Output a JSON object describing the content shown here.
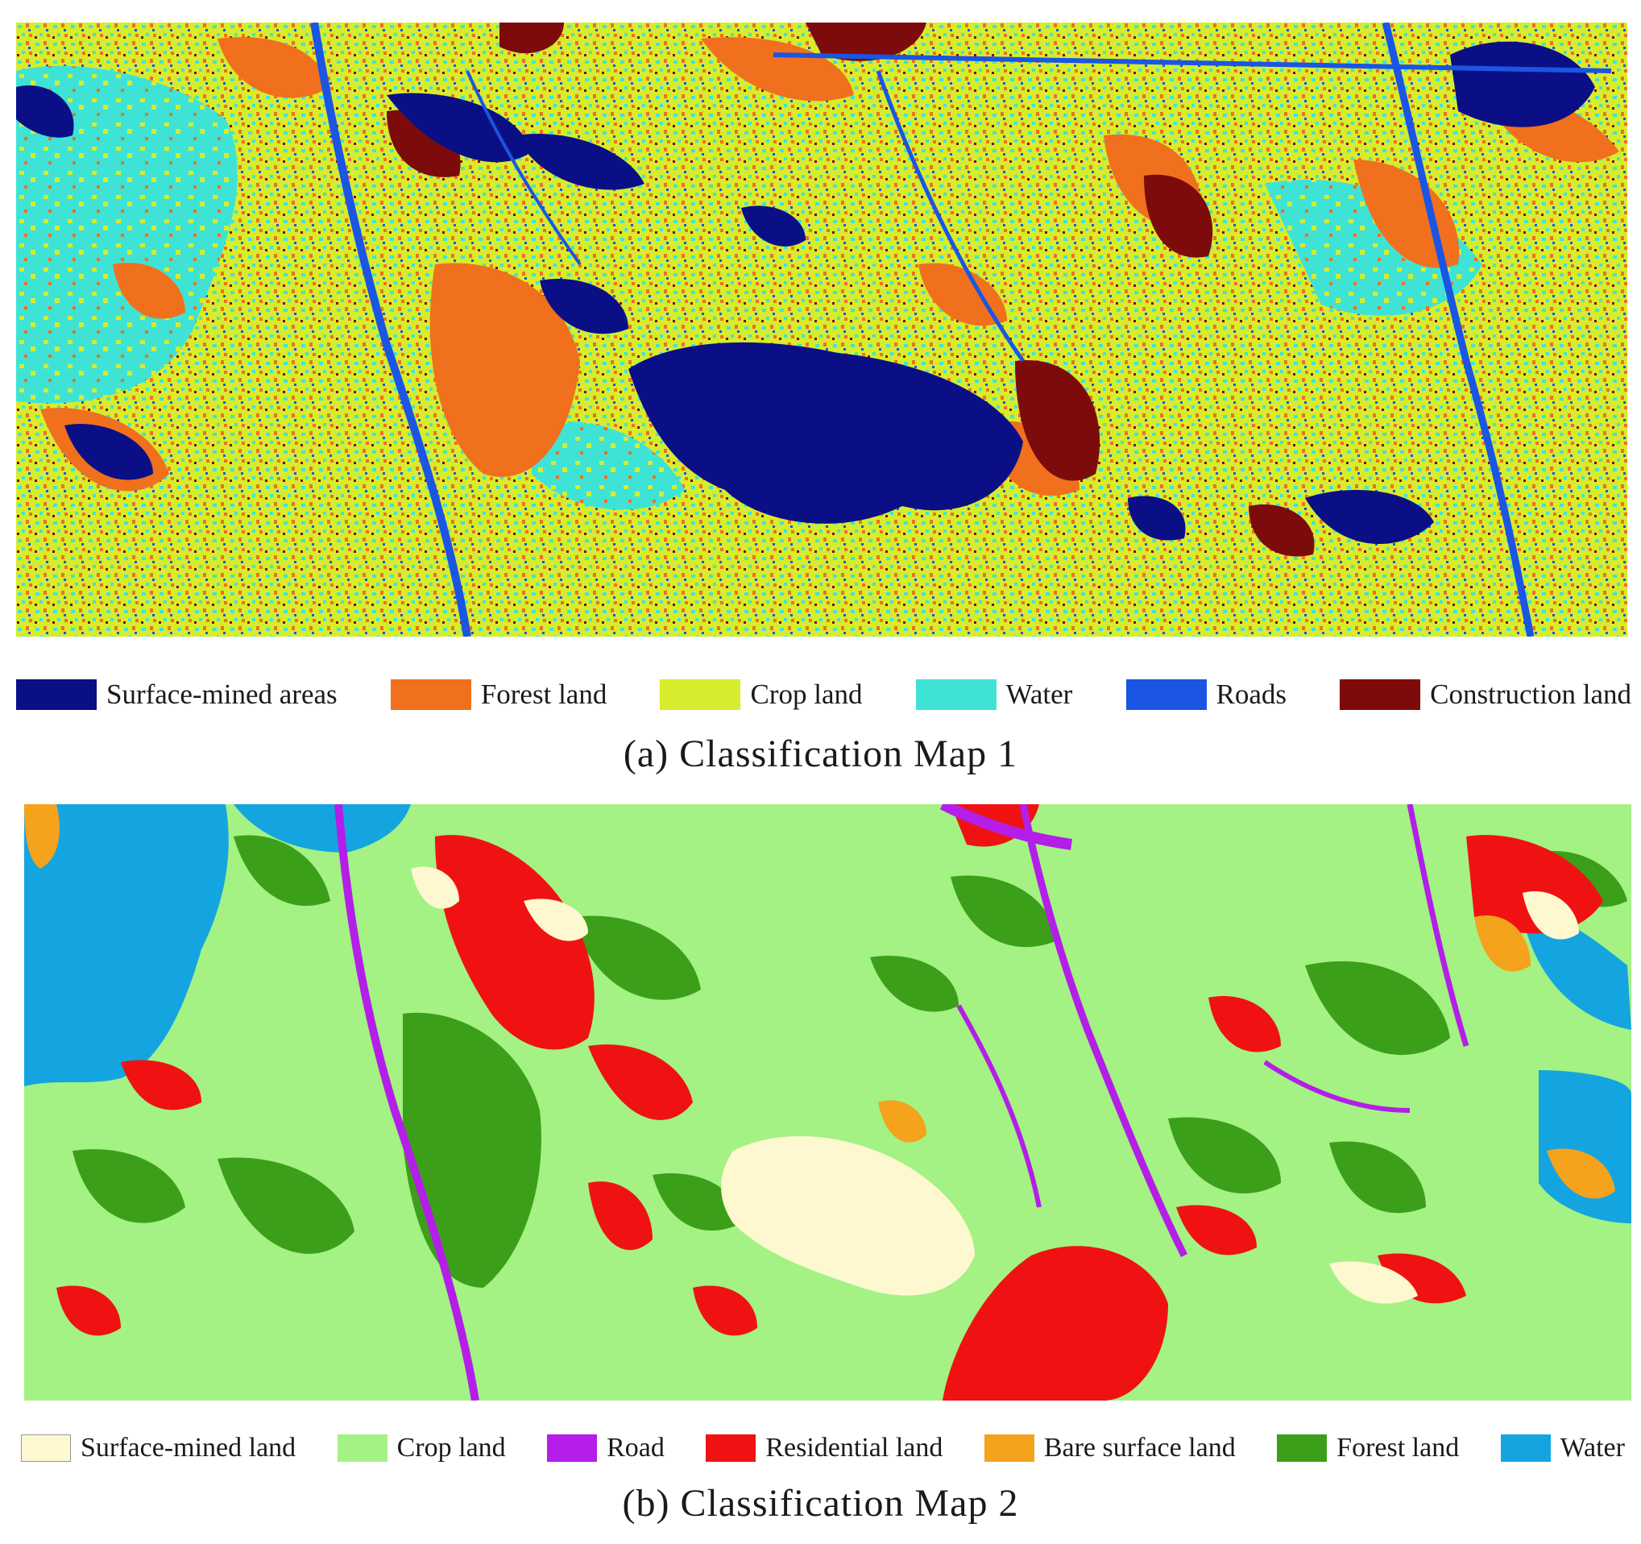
{
  "figure_a": {
    "caption": "(a)  Classification Map 1",
    "legend": [
      {
        "label": "Surface-mined areas",
        "color": "#0b0f86"
      },
      {
        "label": "Forest land",
        "color": "#f0701e"
      },
      {
        "label": "Crop land",
        "color": "#d6ec2c"
      },
      {
        "label": "Water",
        "color": "#3fe3d5"
      },
      {
        "label": "Roads",
        "color": "#1a55e3"
      },
      {
        "label": "Construction land",
        "color": "#7d0b0b"
      }
    ]
  },
  "figure_b": {
    "caption": "(b)  Classification Map 2",
    "legend": [
      {
        "label": "Surface-mined land",
        "color": "#fdf8cf"
      },
      {
        "label": "Crop land",
        "color": "#a3f283"
      },
      {
        "label": "Road",
        "color": "#b41ee8"
      },
      {
        "label": "Residential land",
        "color": "#f01212"
      },
      {
        "label": "Bare surface land",
        "color": "#f5a21c"
      },
      {
        "label": "Forest land",
        "color": "#3c9f1a"
      },
      {
        "label": "Water",
        "color": "#14a5e0"
      }
    ]
  }
}
